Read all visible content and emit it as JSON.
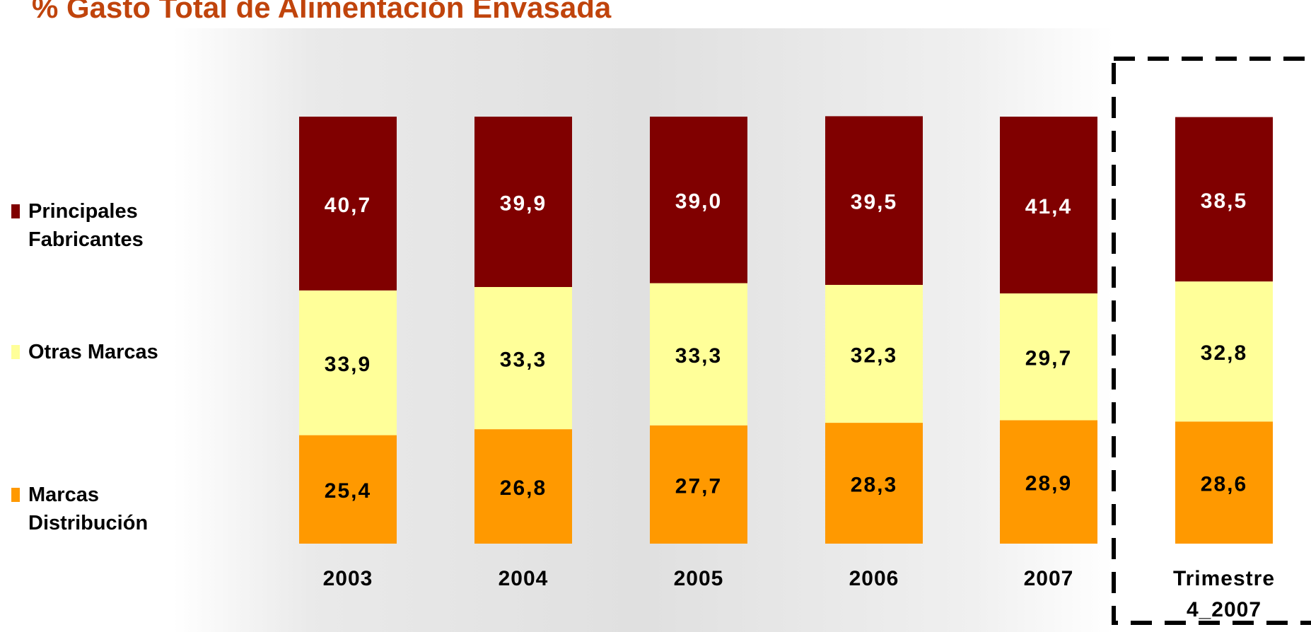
{
  "chart_data": {
    "type": "stacked-bar",
    "title": "% Gasto Total de Alimentación Envasada",
    "categories": [
      "2003",
      "2004",
      "2005",
      "2006",
      "2007",
      "Trimestre 4_2007"
    ],
    "series": [
      {
        "name": "Marcas Distribución",
        "color": "#ff9900",
        "values": [
          25.4,
          26.8,
          27.7,
          28.3,
          28.9,
          28.6
        ],
        "value_labels": [
          "25,4",
          "26,8",
          "27,7",
          "28,3",
          "28,9",
          "28,6"
        ]
      },
      {
        "name": "Otras Marcas",
        "color": "#ffff99",
        "values": [
          33.9,
          33.3,
          33.3,
          32.3,
          29.7,
          32.8
        ],
        "value_labels": [
          "33,9",
          "33,3",
          "33,3",
          "32,3",
          "29,7",
          "32,8"
        ]
      },
      {
        "name": "Principales Fabricantes",
        "color": "#800000",
        "values": [
          40.7,
          39.9,
          39.0,
          39.5,
          41.4,
          38.5
        ],
        "value_labels": [
          "40,7",
          "39,9",
          "39,0",
          "39,5",
          "41,4",
          "38,5"
        ]
      }
    ],
    "ylim": [
      0,
      100
    ]
  }
}
